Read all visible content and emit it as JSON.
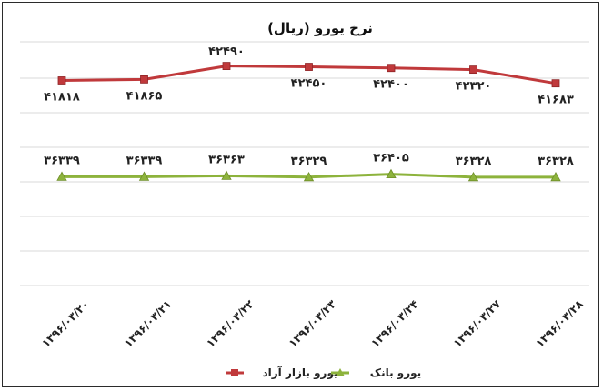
{
  "chart_data": {
    "type": "line",
    "title": "نرخ یورو (ریال)",
    "categories": [
      "۱۳۹۶/۰۳/۲۰",
      "۱۳۹۶/۰۳/۲۱",
      "۱۳۹۶/۰۳/۲۲",
      "۱۳۹۶/۰۳/۲۳",
      "۱۳۹۶/۰۳/۲۴",
      "۱۳۹۶/۰۳/۲۷",
      "۱۳۹۶/۰۳/۲۸"
    ],
    "series": [
      {
        "name": "یورو بازار آزاد",
        "color": "#c0393b",
        "marker": "square",
        "values": [
          41818,
          41865,
          42490,
          42450,
          42400,
          42320,
          41683
        ],
        "labels": [
          "۴۱۸۱۸",
          "۴۱۸۶۵",
          "۴۲۴۹۰",
          "۴۲۴۵۰",
          "۴۲۴۰۰",
          "۴۲۳۲۰",
          "۴۱۶۸۳"
        ]
      },
      {
        "name": "یورو بانک",
        "color": "#8db33c",
        "marker": "triangle",
        "values": [
          36339,
          36339,
          36363,
          36329,
          36405,
          36328,
          36328
        ],
        "labels": [
          "۳۶۳۳۹",
          "۳۶۳۳۹",
          "۳۶۳۶۳",
          "۳۶۳۲۹",
          "۳۶۴۰۵",
          "۳۶۳۲۸",
          "۳۶۳۲۸"
        ]
      }
    ],
    "legend_position": "bottom",
    "grid": true
  }
}
